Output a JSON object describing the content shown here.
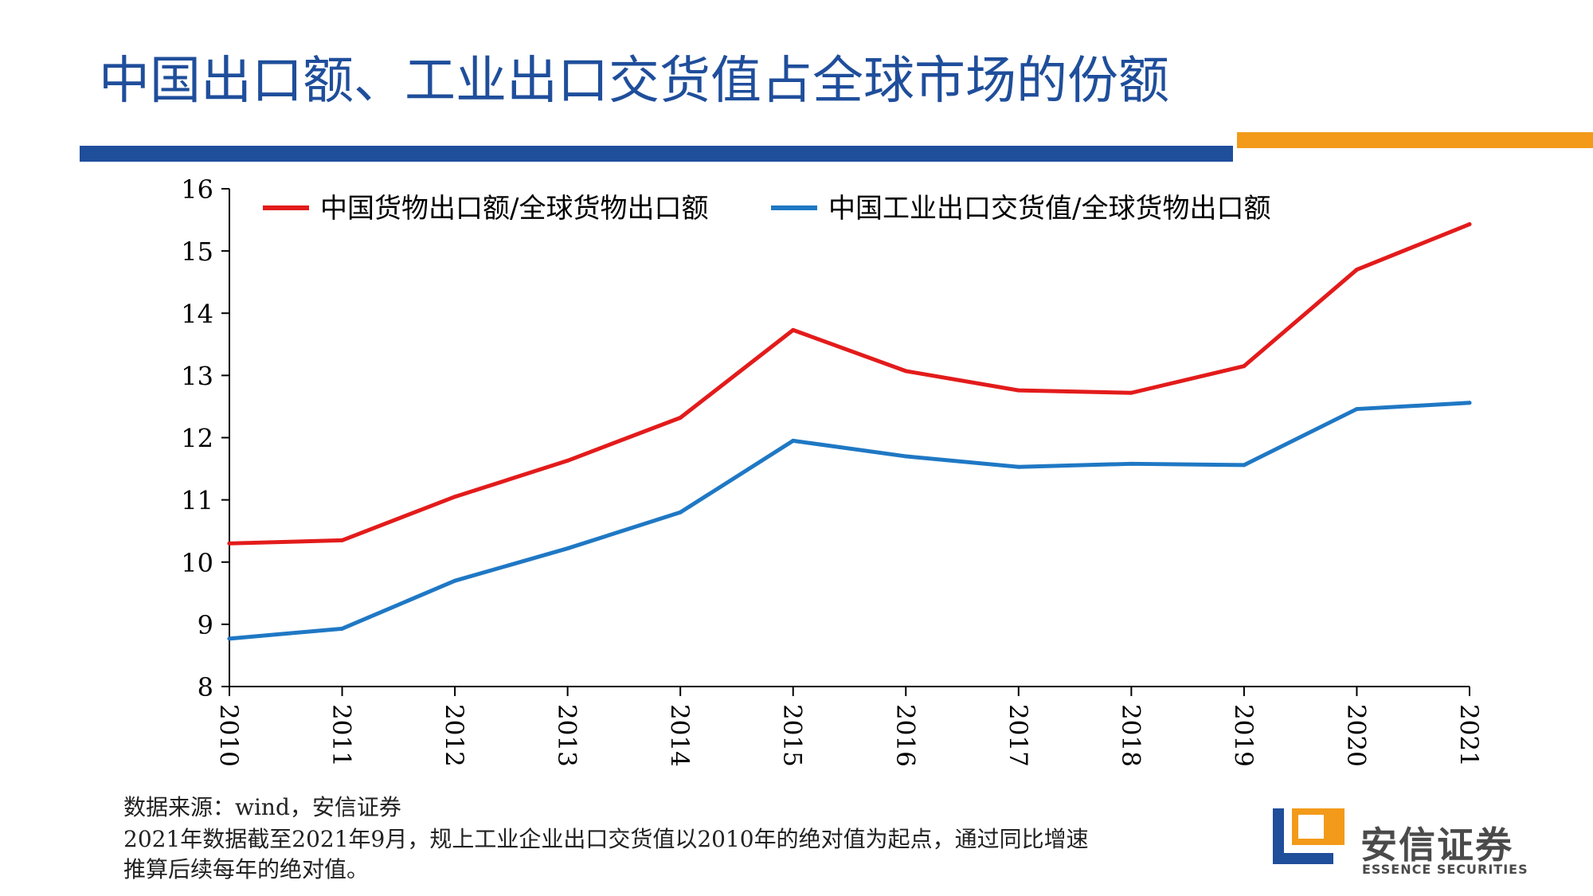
{
  "title": "中国出口额、工业出口交货值占全球市场的份额",
  "colors": {
    "title": "#1f4e9b",
    "accent_bar": "#1f4e9b",
    "accent_bar_2": "#f39a1a",
    "series_1": "#e31b1b",
    "series_2": "#1f78c4"
  },
  "chart_data": {
    "type": "line",
    "x": [
      "2010",
      "2011",
      "2012",
      "2013",
      "2014",
      "2015",
      "2016",
      "2017",
      "2018",
      "2019",
      "2020",
      "2021"
    ],
    "ylim": [
      8,
      16
    ],
    "yticks": [
      "8",
      "9",
      "10",
      "11",
      "12",
      "13",
      "14",
      "15",
      "16"
    ],
    "grid": false,
    "legend_position": "top",
    "series": [
      {
        "name": "中国货物出口额/全球货物出口额",
        "color": "#e31b1b",
        "values": [
          10.3,
          10.35,
          11.05,
          11.63,
          12.32,
          13.73,
          13.07,
          12.76,
          12.72,
          13.15,
          14.7,
          15.43
        ]
      },
      {
        "name": "中国工业出口交货值/全球货物出口额",
        "color": "#1f78c4",
        "values": [
          8.77,
          8.93,
          9.7,
          10.22,
          10.8,
          11.95,
          11.7,
          11.53,
          11.58,
          11.56,
          12.46,
          12.56
        ]
      }
    ]
  },
  "notes": {
    "source": "数据来源：wind，安信证券",
    "line2": "2021年数据截至2021年9月，规上工业企业出口交货值以2010年的绝对值为起点，通过同比增速",
    "line3": "推算后续每年的绝对值。"
  },
  "logo": {
    "cn": "安信证券",
    "en": "ESSENCE SECURITIES"
  }
}
